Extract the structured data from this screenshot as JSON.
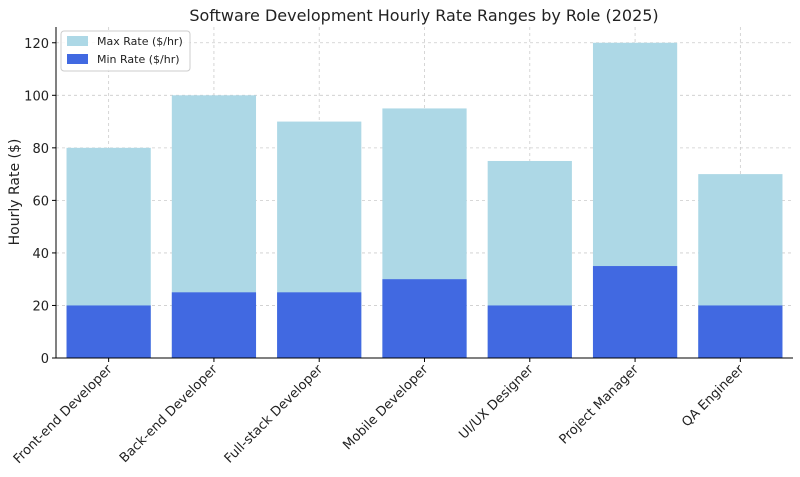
{
  "chart_data": {
    "type": "bar",
    "title": "Software Development Hourly Rate Ranges by Role (2025)",
    "xlabel": "",
    "ylabel": "Hourly Rate ($)",
    "categories": [
      "Front-end Developer",
      "Back-end Developer",
      "Full-stack Developer",
      "Mobile Developer",
      "UI/UX Designer",
      "Project Manager",
      "QA Engineer"
    ],
    "series": [
      {
        "name": "Max Rate ($/hr)",
        "values": [
          80,
          100,
          90,
          95,
          75,
          120,
          70
        ],
        "color": "#add8e6"
      },
      {
        "name": "Min Rate ($/hr)",
        "values": [
          20,
          25,
          25,
          30,
          20,
          35,
          20
        ],
        "color": "#4169e1"
      }
    ],
    "ylim": [
      0,
      126
    ],
    "yticks": [
      0,
      20,
      40,
      60,
      80,
      100,
      120
    ],
    "grid": true,
    "legend_position": "top-left",
    "colors": {
      "grid": "#cccccc",
      "axis": "#000000"
    }
  }
}
